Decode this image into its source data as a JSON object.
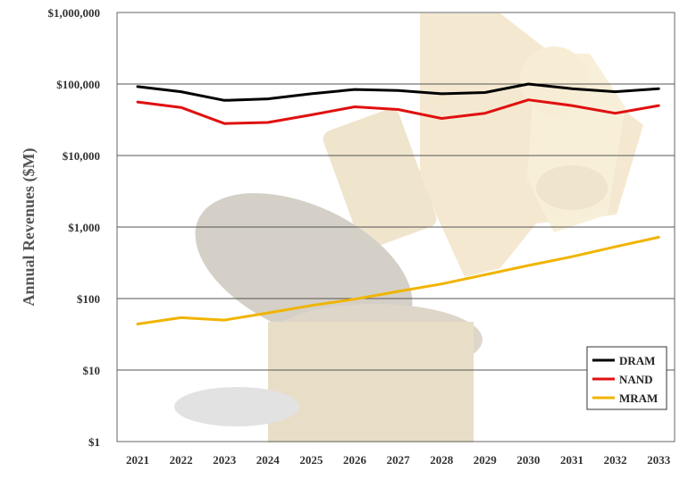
{
  "chart_data": {
    "type": "line",
    "title": "",
    "xlabel": "",
    "ylabel": "Annual Revenues ($M)",
    "yscale": "log",
    "ylim": [
      1,
      1000000
    ],
    "y_tick_labels": [
      "$1",
      "$10",
      "$100",
      "$1,000",
      "$10,000",
      "$100,000",
      "$1,000,000"
    ],
    "x": [
      "2021",
      "2022",
      "2023",
      "2024",
      "2025",
      "2026",
      "2027",
      "2028",
      "2029",
      "2030",
      "2031",
      "2032",
      "2033"
    ],
    "grid": "horizontal",
    "legend_position": "bottom-right",
    "series": [
      {
        "name": "DRAM",
        "color": "#000000",
        "values": [
          92000,
          78000,
          59000,
          62000,
          73000,
          84000,
          81000,
          73000,
          76000,
          100000,
          86000,
          78000,
          86000
        ]
      },
      {
        "name": "NAND",
        "color": "#e01010",
        "values": [
          56000,
          47000,
          28000,
          29000,
          37000,
          48000,
          44000,
          33000,
          39000,
          60000,
          50000,
          39000,
          50000
        ]
      },
      {
        "name": "MRAM",
        "color": "#f0b400",
        "values": [
          44,
          54,
          50,
          63,
          80,
          98,
          126,
          160,
          215,
          290,
          385,
          530,
          720
        ]
      }
    ]
  }
}
